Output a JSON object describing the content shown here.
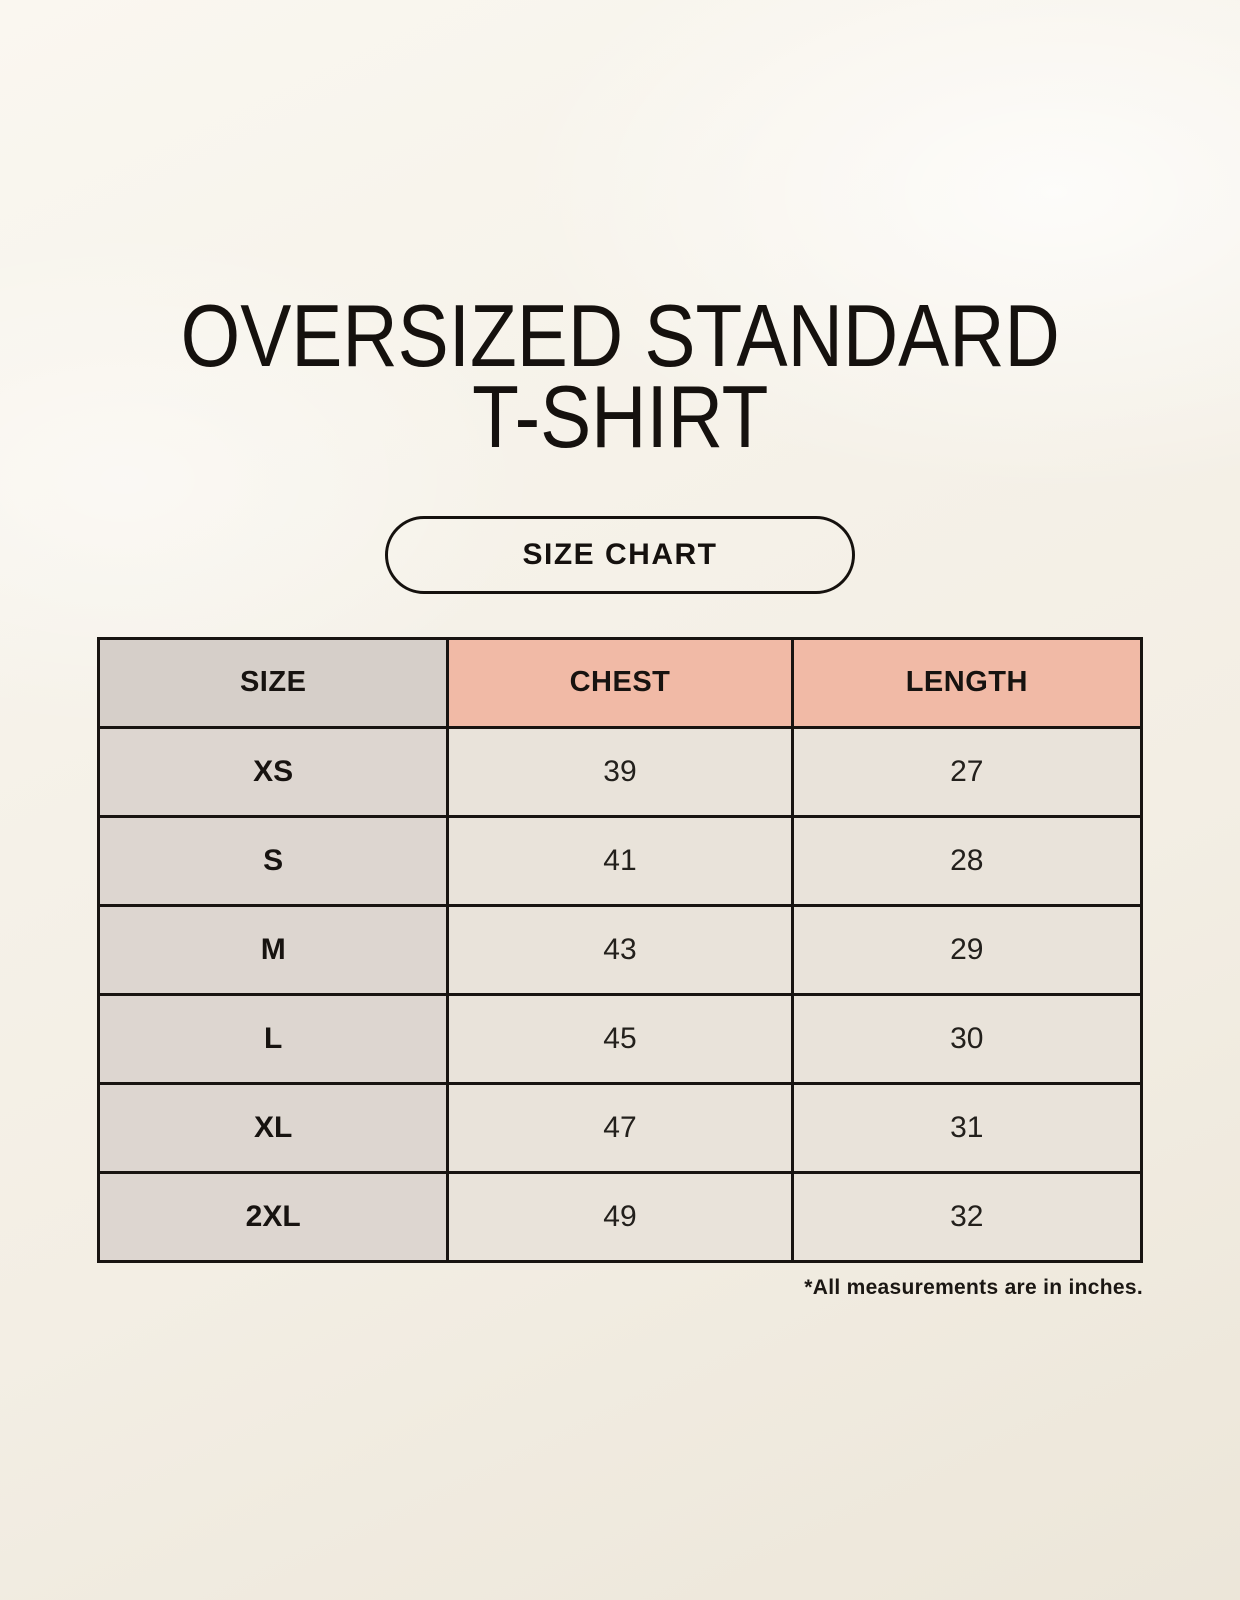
{
  "header": {
    "title_line1": "OVERSIZED STANDARD",
    "title_line2": "T-SHIRT",
    "button_label": "SIZE CHART"
  },
  "footnote": "*All measurements are in inches.",
  "colors": {
    "background": "#f5f1e8",
    "header_size_bg": "#d6cfc9",
    "header_accent_salmon": "#f1baa6",
    "size_column_bg": "#ddd6d0",
    "data_cell_bg": "#e9e3da",
    "ink": "#15110e"
  },
  "chart_data": {
    "type": "table",
    "title": "OVERSIZED STANDARD T-SHIRT",
    "subtitle": "SIZE CHART",
    "columns": [
      "SIZE",
      "CHEST",
      "LENGTH"
    ],
    "rows": [
      [
        "XS",
        "39",
        "27"
      ],
      [
        "S",
        "41",
        "28"
      ],
      [
        "M",
        "43",
        "29"
      ],
      [
        "L",
        "45",
        "30"
      ],
      [
        "XL",
        "47",
        "31"
      ],
      [
        "2XL",
        "49",
        "32"
      ]
    ],
    "footnote": "*All measurements are in inches.",
    "units": "inches",
    "layout": "3 equal columns, header row + 6 data rows, black 3px grid"
  }
}
